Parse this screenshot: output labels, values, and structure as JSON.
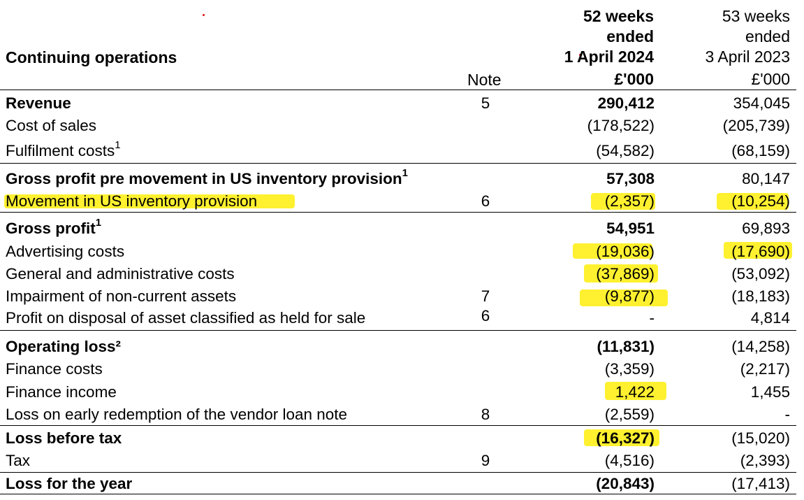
{
  "header": {
    "section_title": "Continuing operations",
    "note_label": "Note",
    "current_period": [
      "52 weeks",
      "ended",
      "1 April 2024",
      "£'000"
    ],
    "prior_period": [
      "53 weeks",
      "ended",
      "3 April 2023",
      "£'000"
    ]
  },
  "rows": [
    {
      "label": "Revenue",
      "note": "5",
      "current": "290,412",
      "prior": "354,045"
    },
    {
      "label": "Cost of sales",
      "note": "",
      "current": "(178,522)",
      "prior": "(205,739)"
    },
    {
      "label": "Fulfilment costs",
      "sup": "1",
      "note": "",
      "current": "(54,582)",
      "prior": "(68,159)"
    },
    {
      "label": "Gross profit pre movement in US inventory provision",
      "sup": "1",
      "note": "",
      "current": "57,308",
      "prior": "80,147"
    },
    {
      "label": "Movement in US inventory provision",
      "note": "6",
      "current": "(2,357)",
      "prior": "(10,254)"
    },
    {
      "label": "Gross profit",
      "sup": "1",
      "note": "",
      "current": "54,951",
      "prior": "69,893"
    },
    {
      "label": "Advertising costs",
      "note": "",
      "current": "(19,036)",
      "prior": "(17,690)"
    },
    {
      "label": "General and administrative costs",
      "note": "",
      "current": "(37,869)",
      "prior": "(53,092)"
    },
    {
      "label": "Impairment of non-current assets",
      "note": "7",
      "current": "(9,877)",
      "prior": "(18,183)"
    },
    {
      "label": "Profit on disposal of asset classified as held for sale",
      "note": "6",
      "current": "-",
      "prior": "4,814"
    },
    {
      "label": "Operating loss²",
      "note": "",
      "current": "(11,831)",
      "prior": "(14,258)"
    },
    {
      "label": "Finance costs",
      "note": "",
      "current": "(3,359)",
      "prior": "(2,217)"
    },
    {
      "label": "Finance income",
      "note": "",
      "current": "1,422",
      "prior": "1,455"
    },
    {
      "label": "Loss on early redemption of the vendor loan note",
      "note": "8",
      "current": "(2,559)",
      "prior": "-"
    },
    {
      "label": "Loss before tax",
      "note": "",
      "current": "(16,327)",
      "prior": "(15,020)"
    },
    {
      "label": "Tax",
      "note": "9",
      "current": "(4,516)",
      "prior": "(2,393)"
    },
    {
      "label": "Loss for the year",
      "note": "",
      "current": "(20,843)",
      "prior": "(17,413)"
    }
  ],
  "highlight_color": "#ffef1a",
  "marker_color": "#e01010"
}
